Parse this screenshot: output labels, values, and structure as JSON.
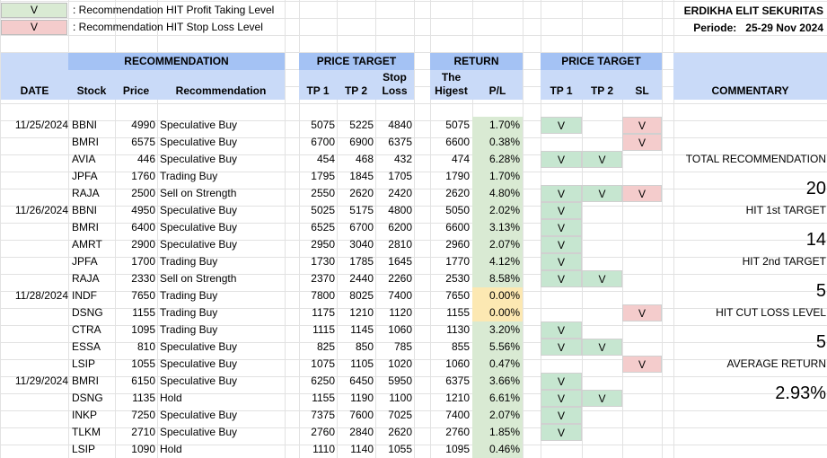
{
  "legend": [
    {
      "mark": "V",
      "text": ": Recommendation HIT Profit Taking Level",
      "color": "#d9ead3"
    },
    {
      "mark": "V",
      "text": ": Recommendation HIT Stop Loss Level",
      "color": "#f4cccc"
    }
  ],
  "company": "ERDIKHA ELIT SEKURITAS",
  "periode": "Periode:   25-29 Nov 2024",
  "headers": {
    "recommendation_group": "RECOMMENDATION",
    "price_target_group": "PRICE TARGET",
    "return_group": "RETURN",
    "price_target_group2": "PRICE TARGET",
    "date": "DATE",
    "stock": "Stock",
    "price": "Price",
    "recommendation": "Recommendation",
    "tp1": "TP 1",
    "tp2": "TP 2",
    "stop_loss_1": "Stop",
    "stop_loss_2": "Loss",
    "the_highest_1": "The",
    "the_highest_2": "Higest",
    "pl": "P/L",
    "hit_tp1": "TP 1",
    "hit_tp2": "TP 2",
    "hit_sl": "SL",
    "commentary": "COMMENTARY"
  },
  "rows": [
    {
      "date": "11/25/2024",
      "stock": "BBNI",
      "price": "4990",
      "rec": "Speculative Buy",
      "tp1": "5075",
      "tp2": "5225",
      "sl": "4840",
      "high": "5075",
      "pl": "1.70%",
      "pl_color": "green",
      "h1": "V",
      "h2": "",
      "hs": "V"
    },
    {
      "date": "",
      "stock": "BMRI",
      "price": "6575",
      "rec": "Speculative Buy",
      "tp1": "6700",
      "tp2": "6900",
      "sl": "6375",
      "high": "6600",
      "pl": "0.38%",
      "pl_color": "green",
      "h1": "",
      "h2": "",
      "hs": "V"
    },
    {
      "date": "",
      "stock": "AVIA",
      "price": "446",
      "rec": "Speculative Buy",
      "tp1": "454",
      "tp2": "468",
      "sl": "432",
      "high": "474",
      "pl": "6.28%",
      "pl_color": "green",
      "h1": "V",
      "h2": "V",
      "hs": ""
    },
    {
      "date": "",
      "stock": "JPFA",
      "price": "1760",
      "rec": "Trading Buy",
      "tp1": "1795",
      "tp2": "1845",
      "sl": "1705",
      "high": "1790",
      "pl": "1.70%",
      "pl_color": "green",
      "h1": "",
      "h2": "",
      "hs": ""
    },
    {
      "date": "",
      "stock": "RAJA",
      "price": "2500",
      "rec": "Sell on Strength",
      "tp1": "2550",
      "tp2": "2620",
      "sl": "2420",
      "high": "2620",
      "pl": "4.80%",
      "pl_color": "green",
      "h1": "V",
      "h2": "V",
      "hs": "V"
    },
    {
      "date": "11/26/2024",
      "stock": "BBNI",
      "price": "4950",
      "rec": "Speculative Buy",
      "tp1": "5025",
      "tp2": "5175",
      "sl": "4800",
      "high": "5050",
      "pl": "2.02%",
      "pl_color": "green",
      "h1": "V",
      "h2": "",
      "hs": ""
    },
    {
      "date": "",
      "stock": "BMRI",
      "price": "6400",
      "rec": "Speculative Buy",
      "tp1": "6525",
      "tp2": "6700",
      "sl": "6200",
      "high": "6600",
      "pl": "3.13%",
      "pl_color": "green",
      "h1": "V",
      "h2": "",
      "hs": ""
    },
    {
      "date": "",
      "stock": "AMRT",
      "price": "2900",
      "rec": "Speculative Buy",
      "tp1": "2950",
      "tp2": "3040",
      "sl": "2810",
      "high": "2960",
      "pl": "2.07%",
      "pl_color": "green",
      "h1": "V",
      "h2": "",
      "hs": ""
    },
    {
      "date": "",
      "stock": "JPFA",
      "price": "1700",
      "rec": "Trading Buy",
      "tp1": "1730",
      "tp2": "1785",
      "sl": "1645",
      "high": "1770",
      "pl": "4.12%",
      "pl_color": "green",
      "h1": "V",
      "h2": "",
      "hs": ""
    },
    {
      "date": "",
      "stock": "RAJA",
      "price": "2330",
      "rec": "Sell on Strength",
      "tp1": "2370",
      "tp2": "2440",
      "sl": "2260",
      "high": "2530",
      "pl": "8.58%",
      "pl_color": "green",
      "h1": "V",
      "h2": "V",
      "hs": ""
    },
    {
      "date": "11/28/2024",
      "stock": "INDF",
      "price": "7650",
      "rec": "Trading Buy",
      "tp1": "7800",
      "tp2": "8025",
      "sl": "7400",
      "high": "7650",
      "pl": "0.00%",
      "pl_color": "yellow",
      "h1": "",
      "h2": "",
      "hs": ""
    },
    {
      "date": "",
      "stock": "DSNG",
      "price": "1155",
      "rec": "Trading Buy",
      "tp1": "1175",
      "tp2": "1210",
      "sl": "1120",
      "high": "1155",
      "pl": "0.00%",
      "pl_color": "yellow",
      "h1": "",
      "h2": "",
      "hs": "V"
    },
    {
      "date": "",
      "stock": "CTRA",
      "price": "1095",
      "rec": "Trading Buy",
      "tp1": "1115",
      "tp2": "1145",
      "sl": "1060",
      "high": "1130",
      "pl": "3.20%",
      "pl_color": "green",
      "h1": "V",
      "h2": "",
      "hs": ""
    },
    {
      "date": "",
      "stock": "ESSA",
      "price": "810",
      "rec": "Speculative Buy",
      "tp1": "825",
      "tp2": "850",
      "sl": "785",
      "high": "855",
      "pl": "5.56%",
      "pl_color": "green",
      "h1": "V",
      "h2": "V",
      "hs": ""
    },
    {
      "date": "",
      "stock": "LSIP",
      "price": "1055",
      "rec": "Speculative Buy",
      "tp1": "1075",
      "tp2": "1105",
      "sl": "1020",
      "high": "1060",
      "pl": "0.47%",
      "pl_color": "green",
      "h1": "",
      "h2": "",
      "hs": "V"
    },
    {
      "date": "11/29/2024",
      "stock": "BMRI",
      "price": "6150",
      "rec": "Speculative Buy",
      "tp1": "6250",
      "tp2": "6450",
      "sl": "5950",
      "high": "6375",
      "pl": "3.66%",
      "pl_color": "green",
      "h1": "V",
      "h2": "",
      "hs": ""
    },
    {
      "date": "",
      "stock": "DSNG",
      "price": "1135",
      "rec": "Hold",
      "tp1": "1155",
      "tp2": "1190",
      "sl": "1100",
      "high": "1210",
      "pl": "6.61%",
      "pl_color": "green",
      "h1": "V",
      "h2": "V",
      "hs": ""
    },
    {
      "date": "",
      "stock": "INKP",
      "price": "7250",
      "rec": "Speculative Buy",
      "tp1": "7375",
      "tp2": "7600",
      "sl": "7025",
      "high": "7400",
      "pl": "2.07%",
      "pl_color": "green",
      "h1": "V",
      "h2": "",
      "hs": ""
    },
    {
      "date": "",
      "stock": "TLKM",
      "price": "2710",
      "rec": "Speculative Buy",
      "tp1": "2760",
      "tp2": "2840",
      "sl": "2620",
      "high": "2760",
      "pl": "1.85%",
      "pl_color": "green",
      "h1": "V",
      "h2": "",
      "hs": ""
    },
    {
      "date": "",
      "stock": "LSIP",
      "price": "1090",
      "rec": "Hold",
      "tp1": "1110",
      "tp2": "1140",
      "sl": "1055",
      "high": "1095",
      "pl": "0.46%",
      "pl_color": "green",
      "h1": "",
      "h2": "",
      "hs": ""
    }
  ],
  "commentary": {
    "total_label": "TOTAL RECOMMENDATION",
    "total_value": "20",
    "tp1_label": "HIT 1st TARGET",
    "tp1_value": "14",
    "tp2_label": "HIT 2nd TARGET",
    "tp2_value": "5",
    "cut_label": "HIT CUT LOSS LEVEL",
    "cut_value": "5",
    "avg_label": "AVERAGE RETURN",
    "avg_value": "2.93%"
  }
}
